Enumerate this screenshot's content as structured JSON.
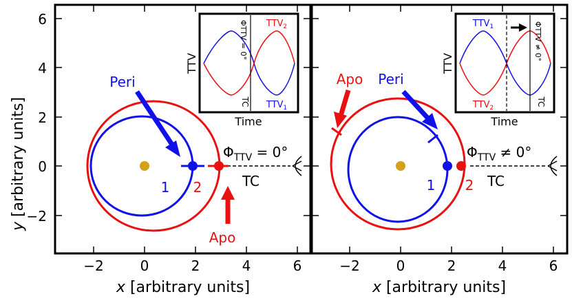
{
  "axes": {
    "ylabel_var": "y",
    "ylabel_unit": " [arbitrary units]",
    "xlabel_var": "x",
    "xlabel_unit": " [arbitrary units]",
    "xticks": [
      "−2",
      "0",
      "2",
      "4",
      "6"
    ],
    "yticks": [
      "6",
      "4",
      "2",
      "0",
      "−2"
    ],
    "xlim": [
      -3.5,
      6.6
    ],
    "ylim": [
      -3.5,
      6.5
    ]
  },
  "colors": {
    "orbit1": "#1010e8",
    "orbit2": "#e81010",
    "star": "#d4a017",
    "line": "#000000"
  },
  "panels": [
    {
      "peri_label": "Peri",
      "apo_label": "Apo",
      "planet1_label": "1",
      "planet2_label": "2",
      "phi_main": "Φ",
      "phi_sub": "TTV",
      "phi_value": " = 0°",
      "tc_label": "TC",
      "inset": {
        "ylabel": "TTV",
        "xlabel": "Time",
        "ttv_upper": "TTV",
        "ttv_upper_sub": "2",
        "ttv_lower": "TTV",
        "ttv_lower_sub": "1",
        "phi_vertical": "ΦTTV = 0°",
        "tc": "TC"
      }
    },
    {
      "peri_label": "Peri",
      "apo_label": "Apo",
      "planet1_label": "1",
      "planet2_label": "2",
      "phi_main": "Φ",
      "phi_sub": "TTV",
      "phi_value": " ≠ 0°",
      "tc_label": "TC",
      "inset": {
        "ylabel": "TTV",
        "xlabel": "Time",
        "ttv_upper": "TTV",
        "ttv_upper_sub": "1",
        "ttv_lower": "TTV",
        "ttv_lower_sub": "2",
        "phi_vertical": "ΦTTV ≠ 0°",
        "tc": "TC"
      }
    }
  ]
}
